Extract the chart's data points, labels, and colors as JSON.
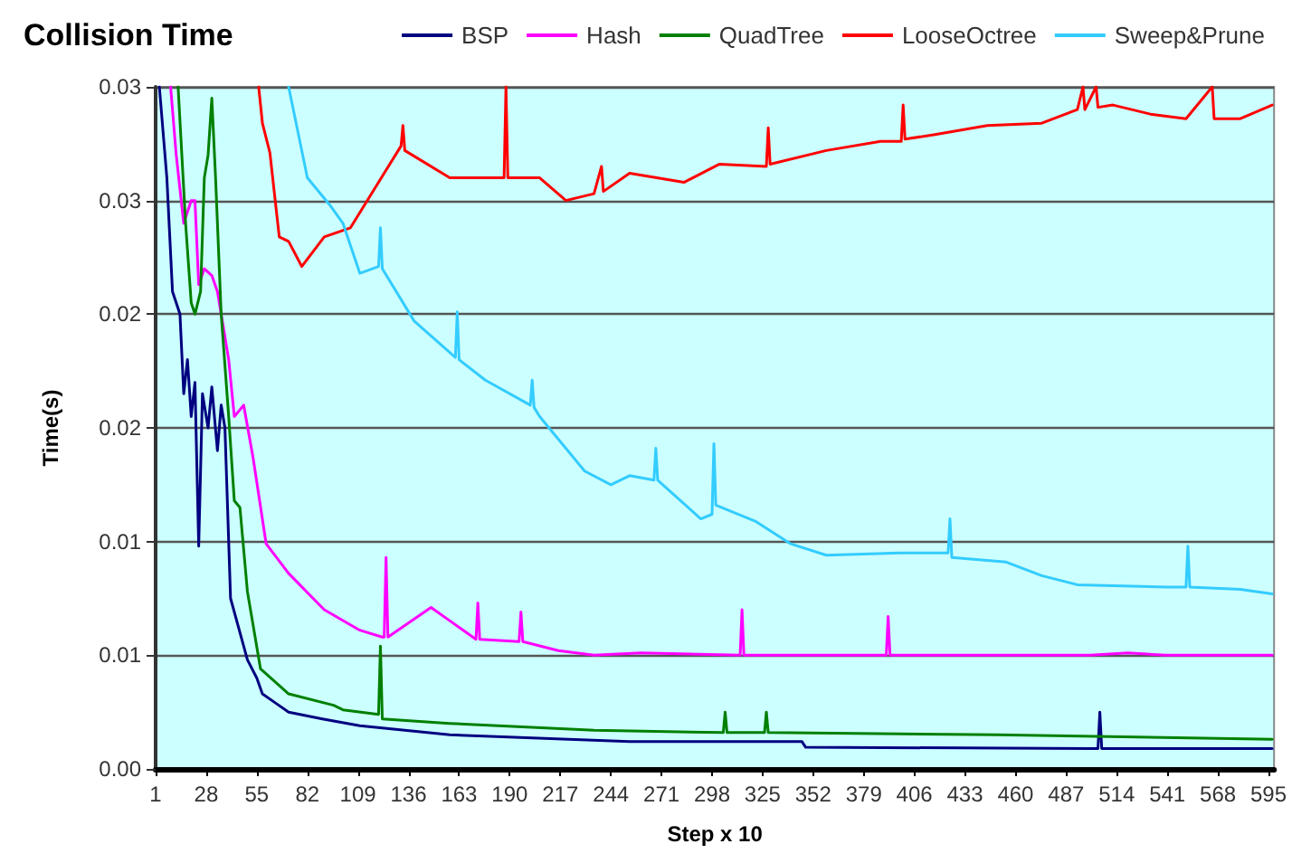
{
  "chart_data": {
    "type": "line",
    "title": "Collision Time",
    "xlabel": "Step x 10",
    "ylabel": "Time(s)",
    "xlim": [
      1,
      598
    ],
    "xticks": [
      1,
      28,
      55,
      82,
      109,
      136,
      163,
      190,
      217,
      244,
      271,
      298,
      325,
      352,
      379,
      406,
      433,
      460,
      487,
      514,
      541,
      568,
      595
    ],
    "ylim": [
      0,
      0.03
    ],
    "yticks": [
      {
        "value": 0,
        "label": "0.00"
      },
      {
        "value": 0.005,
        "label": "0.01"
      },
      {
        "value": 0.01,
        "label": "0.01"
      },
      {
        "value": 0.015,
        "label": "0.02"
      },
      {
        "value": 0.02,
        "label": "0.02"
      },
      {
        "value": 0.025,
        "label": "0.03"
      },
      {
        "value": 0.03,
        "label": "0.03"
      }
    ],
    "grid": "y",
    "legend": "top right",
    "marker": "none",
    "line_style": "solid",
    "series": [
      {
        "name": "BSP",
        "color": "#000080",
        "x": [
          3,
          7,
          10,
          14,
          16,
          18,
          20,
          22,
          24,
          26,
          29,
          31,
          34,
          36,
          38,
          41,
          46,
          50,
          55,
          58,
          65,
          72,
          90,
          110,
          158,
          254,
          346,
          348,
          500,
          504,
          505,
          506,
          597
        ],
        "values": [
          0.03,
          0.026,
          0.021,
          0.02,
          0.0165,
          0.018,
          0.0155,
          0.017,
          0.0098,
          0.0165,
          0.015,
          0.0168,
          0.014,
          0.016,
          0.015,
          0.0075,
          0.006,
          0.0048,
          0.004,
          0.0033,
          0.0029,
          0.0025,
          0.0022,
          0.0019,
          0.0015,
          0.0012,
          0.0012,
          0.00095,
          0.0009,
          0.0009,
          0.0025,
          0.0009,
          0.0009
        ]
      },
      {
        "name": "Hash",
        "color": "#ff00ff",
        "x": [
          9,
          12,
          16,
          20,
          22,
          24,
          27,
          31,
          34,
          40,
          43,
          48,
          53,
          60,
          72,
          91,
          110,
          122,
          123,
          124,
          125,
          148,
          160,
          172,
          173,
          174,
          195,
          196,
          197,
          216,
          235,
          260,
          313,
          314,
          315,
          391,
          392,
          393,
          500,
          520,
          540,
          597
        ],
        "values": [
          0.03,
          0.027,
          0.024,
          0.025,
          0.025,
          0.0213,
          0.022,
          0.0217,
          0.021,
          0.018,
          0.0155,
          0.016,
          0.0137,
          0.0099,
          0.0086,
          0.007,
          0.0061,
          0.0058,
          0.0058,
          0.0093,
          0.0058,
          0.0071,
          0.0064,
          0.0057,
          0.0073,
          0.0057,
          0.0056,
          0.0069,
          0.0056,
          0.0052,
          0.005,
          0.0051,
          0.005,
          0.007,
          0.005,
          0.005,
          0.0067,
          0.005,
          0.005,
          0.0051,
          0.005,
          0.005
        ]
      },
      {
        "name": "QuadTree",
        "color": "#008000",
        "x": [
          13,
          17,
          20,
          22,
          25,
          27,
          29,
          31,
          33,
          36,
          40,
          43,
          46,
          50,
          57,
          72,
          96,
          101,
          120,
          121,
          122,
          158,
          235,
          304,
          305,
          306,
          326,
          327,
          328,
          450,
          597
        ],
        "values": [
          0.03,
          0.024,
          0.0205,
          0.02,
          0.021,
          0.026,
          0.027,
          0.0295,
          0.026,
          0.02,
          0.0155,
          0.0118,
          0.0115,
          0.0078,
          0.0044,
          0.0033,
          0.0028,
          0.0026,
          0.0024,
          0.0054,
          0.0022,
          0.002,
          0.0017,
          0.0016,
          0.0025,
          0.0016,
          0.0016,
          0.0025,
          0.0016,
          0.0015,
          0.0013
        ]
      },
      {
        "name": "LooseOctree",
        "color": "#ff0000",
        "x": [
          56,
          58,
          62,
          67,
          72,
          79,
          91,
          105,
          120,
          132,
          133,
          134,
          158,
          187,
          188,
          189,
          206,
          220,
          235,
          239,
          240,
          254,
          283,
          302,
          327,
          328,
          329,
          359,
          388,
          399,
          400,
          401,
          417,
          445,
          474,
          493,
          496,
          497,
          503,
          504,
          512,
          532,
          551,
          565,
          566,
          580,
          597
        ],
        "values": [
          0.03,
          0.0284,
          0.0271,
          0.0234,
          0.0232,
          0.0221,
          0.0234,
          0.0238,
          0.0258,
          0.0274,
          0.0283,
          0.0272,
          0.026,
          0.026,
          0.03,
          0.026,
          0.026,
          0.025,
          0.0253,
          0.0265,
          0.0254,
          0.0262,
          0.0258,
          0.0266,
          0.0265,
          0.0282,
          0.0266,
          0.0272,
          0.0276,
          0.0276,
          0.0292,
          0.0277,
          0.0279,
          0.0283,
          0.0284,
          0.029,
          0.03,
          0.029,
          0.03,
          0.0291,
          0.0292,
          0.0288,
          0.0286,
          0.03,
          0.0286,
          0.0286,
          0.0292
        ]
      },
      {
        "name": "Sweep&Prune",
        "color": "#33ccff",
        "x": [
          72,
          82,
          94,
          101,
          110,
          120,
          121,
          122,
          139,
          161,
          162,
          163,
          177,
          201,
          202,
          203,
          206,
          230,
          244,
          254,
          267,
          268,
          269,
          292,
          298,
          299,
          300,
          321,
          340,
          359,
          398,
          424,
          425,
          426,
          455,
          474,
          493,
          541,
          551,
          552,
          553,
          580,
          597
        ],
        "values": [
          0.03,
          0.026,
          0.0248,
          0.024,
          0.0218,
          0.0221,
          0.0238,
          0.022,
          0.0197,
          0.0181,
          0.0201,
          0.018,
          0.0171,
          0.016,
          0.0171,
          0.0159,
          0.0155,
          0.0131,
          0.0125,
          0.0129,
          0.0127,
          0.0141,
          0.0127,
          0.011,
          0.0112,
          0.0143,
          0.0116,
          0.0109,
          0.0099,
          0.0094,
          0.0095,
          0.0095,
          0.011,
          0.0093,
          0.0091,
          0.0085,
          0.0081,
          0.008,
          0.008,
          0.0098,
          0.008,
          0.0079,
          0.0077
        ]
      }
    ]
  }
}
